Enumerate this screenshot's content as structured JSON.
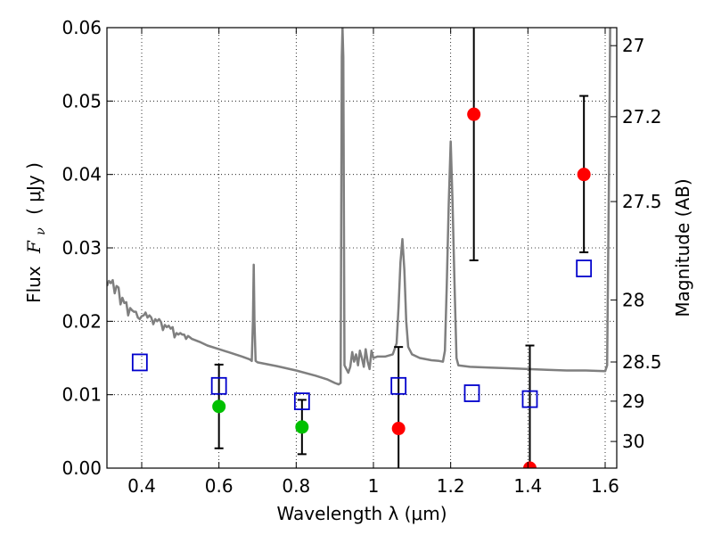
{
  "chart_data": {
    "type": "scatter",
    "xlabel": "Wavelength  λ (μm)",
    "ylabel_left_prefix": "Flux",
    "ylabel_left_symbol_base": "F",
    "ylabel_left_symbol_sub": "ν",
    "ylabel_left_unit": "( μJy )",
    "ylabel_right": "Magnitude (AB)",
    "xlim": [
      0.31,
      1.63
    ],
    "ylim": [
      0.0,
      0.06
    ],
    "grid": true,
    "x_ticks": [
      0.4,
      0.6,
      0.8,
      1.0,
      1.2,
      1.4,
      1.6
    ],
    "x_tick_labels": [
      "0.4",
      "0.6",
      "0.8",
      "1",
      "1.2",
      "1.4",
      "1.6"
    ],
    "y_ticks": [
      0.0,
      0.01,
      0.02,
      0.03,
      0.04,
      0.05,
      0.06
    ],
    "y_tick_labels": [
      "0.00",
      "0.01",
      "0.02",
      "0.03",
      "0.04",
      "0.05",
      "0.06"
    ],
    "right_ticks": [
      {
        "mag": 27,
        "label": "27"
      },
      {
        "mag": 27.2,
        "label": "27.2"
      },
      {
        "mag": 27.5,
        "label": "27.5"
      },
      {
        "mag": 28,
        "label": "28"
      },
      {
        "mag": 28.5,
        "label": "28.5"
      },
      {
        "mag": 29,
        "label": "29"
      },
      {
        "mag": 30,
        "label": "30"
      }
    ],
    "colors": {
      "spectrum": "#7f7f7f",
      "detection": "#ff0000",
      "optical_detection": "#00c000",
      "model": "#0000cc",
      "errorbar": "#000000"
    },
    "series": [
      {
        "name": "model spectrum",
        "kind": "line",
        "points": [
          [
            0.31,
            0.0248
          ],
          [
            0.315,
            0.0255
          ],
          [
            0.32,
            0.0252
          ],
          [
            0.325,
            0.0256
          ],
          [
            0.33,
            0.0238
          ],
          [
            0.335,
            0.0248
          ],
          [
            0.34,
            0.0246
          ],
          [
            0.345,
            0.0223
          ],
          [
            0.35,
            0.0232
          ],
          [
            0.355,
            0.0225
          ],
          [
            0.36,
            0.0226
          ],
          [
            0.365,
            0.0208
          ],
          [
            0.37,
            0.0218
          ],
          [
            0.375,
            0.0215
          ],
          [
            0.38,
            0.0213
          ],
          [
            0.385,
            0.0213
          ],
          [
            0.39,
            0.0205
          ],
          [
            0.395,
            0.0203
          ],
          [
            0.4,
            0.0207
          ],
          [
            0.405,
            0.0208
          ],
          [
            0.41,
            0.0212
          ],
          [
            0.415,
            0.0205
          ],
          [
            0.42,
            0.0208
          ],
          [
            0.425,
            0.0205
          ],
          [
            0.43,
            0.0196
          ],
          [
            0.435,
            0.0203
          ],
          [
            0.44,
            0.02
          ],
          [
            0.445,
            0.0203
          ],
          [
            0.45,
            0.0199
          ],
          [
            0.455,
            0.0188
          ],
          [
            0.46,
            0.0195
          ],
          [
            0.465,
            0.0192
          ],
          [
            0.47,
            0.0194
          ],
          [
            0.475,
            0.019
          ],
          [
            0.48,
            0.0192
          ],
          [
            0.485,
            0.0178
          ],
          [
            0.49,
            0.0184
          ],
          [
            0.495,
            0.0182
          ],
          [
            0.5,
            0.0184
          ],
          [
            0.505,
            0.0182
          ],
          [
            0.51,
            0.0182
          ],
          [
            0.515,
            0.0176
          ],
          [
            0.52,
            0.018
          ],
          [
            0.525,
            0.0178
          ],
          [
            0.53,
            0.0176
          ],
          [
            0.55,
            0.0172
          ],
          [
            0.57,
            0.0167
          ],
          [
            0.6,
            0.0162
          ],
          [
            0.63,
            0.0157
          ],
          [
            0.66,
            0.0152
          ],
          [
            0.68,
            0.0148
          ],
          [
            0.685,
            0.0146
          ],
          [
            0.688,
            0.02
          ],
          [
            0.69,
            0.0277
          ],
          [
            0.692,
            0.02
          ],
          [
            0.695,
            0.0146
          ],
          [
            0.7,
            0.0144
          ],
          [
            0.75,
            0.0139
          ],
          [
            0.8,
            0.0133
          ],
          [
            0.85,
            0.0126
          ],
          [
            0.88,
            0.0121
          ],
          [
            0.9,
            0.0116
          ],
          [
            0.91,
            0.0114
          ],
          [
            0.915,
            0.0116
          ],
          [
            0.918,
            0.056
          ],
          [
            0.92,
            0.06
          ],
          [
            0.922,
            0.056
          ],
          [
            0.925,
            0.014
          ],
          [
            0.93,
            0.0135
          ],
          [
            0.935,
            0.013
          ],
          [
            0.94,
            0.0138
          ],
          [
            0.945,
            0.0158
          ],
          [
            0.95,
            0.0145
          ],
          [
            0.955,
            0.0155
          ],
          [
            0.96,
            0.014
          ],
          [
            0.965,
            0.016
          ],
          [
            0.97,
            0.015
          ],
          [
            0.975,
            0.0138
          ],
          [
            0.98,
            0.0162
          ],
          [
            0.985,
            0.0145
          ],
          [
            0.99,
            0.0135
          ],
          [
            0.995,
            0.016
          ],
          [
            1.0,
            0.015
          ],
          [
            1.01,
            0.0152
          ],
          [
            1.03,
            0.0152
          ],
          [
            1.05,
            0.0155
          ],
          [
            1.06,
            0.017
          ],
          [
            1.065,
            0.022
          ],
          [
            1.07,
            0.028
          ],
          [
            1.075,
            0.0312
          ],
          [
            1.08,
            0.027
          ],
          [
            1.085,
            0.02
          ],
          [
            1.09,
            0.0165
          ],
          [
            1.1,
            0.0155
          ],
          [
            1.12,
            0.015
          ],
          [
            1.15,
            0.0147
          ],
          [
            1.17,
            0.0146
          ],
          [
            1.18,
            0.0145
          ],
          [
            1.185,
            0.016
          ],
          [
            1.19,
            0.025
          ],
          [
            1.195,
            0.036
          ],
          [
            1.2,
            0.0445
          ],
          [
            1.205,
            0.036
          ],
          [
            1.21,
            0.025
          ],
          [
            1.215,
            0.015
          ],
          [
            1.22,
            0.014
          ],
          [
            1.25,
            0.0138
          ],
          [
            1.3,
            0.0137
          ],
          [
            1.35,
            0.0136
          ],
          [
            1.4,
            0.0135
          ],
          [
            1.45,
            0.0134
          ],
          [
            1.5,
            0.0133
          ],
          [
            1.55,
            0.0133
          ],
          [
            1.6,
            0.0132
          ],
          [
            1.605,
            0.014
          ],
          [
            1.61,
            0.04
          ],
          [
            1.613,
            0.06
          ]
        ]
      },
      {
        "name": "model photometry",
        "kind": "open-square",
        "points": [
          [
            0.395,
            0.0144
          ],
          [
            0.6,
            0.0112
          ],
          [
            0.815,
            0.0091
          ],
          [
            1.065,
            0.0112
          ],
          [
            1.255,
            0.0102
          ],
          [
            1.405,
            0.0094
          ],
          [
            1.545,
            0.0272
          ]
        ]
      },
      {
        "name": "optical detections",
        "kind": "filled-circle",
        "color": "green",
        "points": [
          [
            0.6,
            0.0084,
            0.0027,
            0.0141
          ],
          [
            0.815,
            0.0056,
            0.0019,
            0.0093
          ]
        ]
      },
      {
        "name": "infrared detections",
        "kind": "filled-circle",
        "color": "red",
        "points": [
          [
            1.065,
            0.0054,
            0.0,
            0.0165
          ],
          [
            1.26,
            0.0482,
            0.0283,
            0.06
          ],
          [
            1.545,
            0.04,
            0.0294,
            0.0507
          ],
          [
            1.405,
            0.0,
            0.0,
            0.0167
          ]
        ]
      }
    ]
  }
}
